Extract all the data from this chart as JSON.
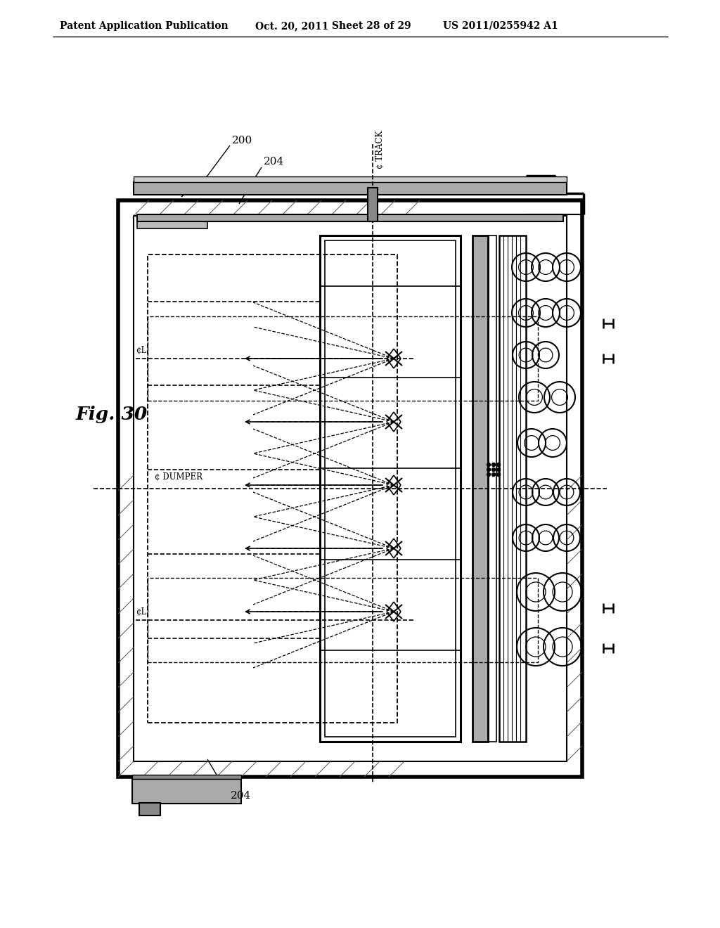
{
  "bg_color": "#ffffff",
  "line_color": "#000000",
  "header_text": "Patent Application Publication",
  "header_date": "Oct. 20, 2011",
  "header_sheet": "Sheet 28 of 29",
  "header_patent": "US 2011/0255942 A1",
  "fig_label": "Fig. 30",
  "label_200": "200",
  "label_204_top": "204",
  "label_204_bot": "204",
  "label_track": "¢ TRACK",
  "label_dumper": "¢ DUMPER",
  "label_cl_top": "¢L",
  "label_cl_bot": "¢L"
}
